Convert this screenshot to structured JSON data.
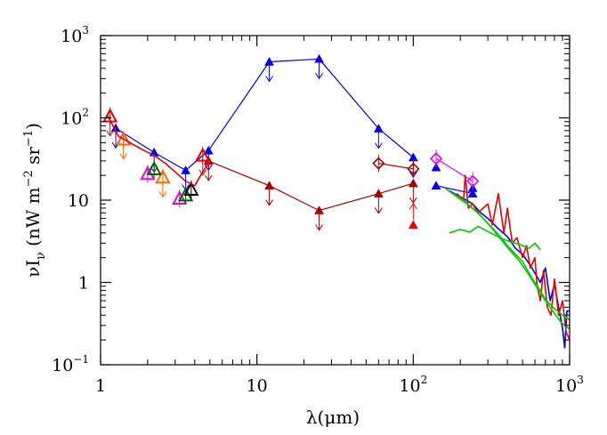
{
  "chart_data": {
    "type": "scatter",
    "x_scale": "log",
    "y_scale": "log",
    "xlim": [
      1,
      1000
    ],
    "ylim": [
      0.1,
      1000
    ],
    "x_ticks": [
      {
        "value": 1,
        "base": "1",
        "exp": ""
      },
      {
        "value": 10,
        "base": "10",
        "exp": ""
      },
      {
        "value": 100,
        "base": "10",
        "exp": "2"
      },
      {
        "value": 1000,
        "base": "10",
        "exp": "3"
      }
    ],
    "y_ticks": [
      {
        "value": 0.1,
        "base": "10",
        "exp": "−1"
      },
      {
        "value": 1,
        "base": "1",
        "exp": ""
      },
      {
        "value": 10,
        "base": "10",
        "exp": ""
      },
      {
        "value": 100,
        "base": "10",
        "exp": "2"
      },
      {
        "value": 1000,
        "base": "10",
        "exp": "3"
      }
    ],
    "xlabel": "λ(μm)",
    "ylabel": "νI_ν (nW m⁻² sr⁻¹)",
    "colors": {
      "blue": "#0000ee",
      "darkred": "#aa0000",
      "red": "#ee0000",
      "orange": "#ff6600",
      "magenta": "#ee00ee",
      "green": "#00cc00",
      "darkgreen": "#006600",
      "black": "#000000"
    },
    "series": [
      {
        "marker": "filled-triangle",
        "color": "blue",
        "connect": true,
        "upper_limit": true,
        "points": [
          [
            1.25,
            75
          ],
          [
            2.2,
            38
          ],
          [
            3.5,
            23
          ],
          [
            4.9,
            40
          ],
          [
            12,
            480
          ],
          [
            25,
            520
          ],
          [
            60,
            74
          ],
          [
            100,
            33
          ]
        ]
      },
      {
        "marker": "filled-triangle",
        "color": "darkred",
        "connect": true,
        "upper_limit": true,
        "points": [
          [
            4.9,
            30
          ],
          [
            12,
            15
          ],
          [
            25,
            7.5
          ],
          [
            60,
            12
          ],
          [
            100,
            16
          ]
        ]
      },
      {
        "marker": "filled-triangle",
        "color": "blue",
        "connect": true,
        "upper_limit": false,
        "points": [
          [
            140,
            15
          ],
          [
            240,
            12
          ]
        ]
      },
      {
        "marker": "filled-triangle",
        "color": "blue",
        "connect": false,
        "upper_limit": false,
        "points": [
          [
            140,
            25
          ],
          [
            240,
            14
          ]
        ]
      },
      {
        "marker": "filled-triangle",
        "color": "red",
        "connect": false,
        "upper_limit": false,
        "lower_limit": true,
        "points": [
          [
            100,
            5
          ]
        ]
      },
      {
        "marker": "open-triangle",
        "color": "red",
        "connect": false,
        "upper_limit": true,
        "points": [
          [
            1.15,
            105
          ],
          [
            4.5,
            35
          ]
        ]
      },
      {
        "marker": "open-triangle",
        "color": "orange",
        "connect": false,
        "upper_limit": true,
        "points": [
          [
            1.4,
            55
          ],
          [
            2.5,
            19
          ]
        ]
      },
      {
        "marker": "open-triangle",
        "color": "magenta",
        "connect": false,
        "upper_limit": false,
        "points": [
          [
            2.0,
            21
          ],
          [
            3.2,
            10.5
          ]
        ]
      },
      {
        "marker": "open-triangle",
        "color": "darkgreen",
        "connect": false,
        "upper_limit": false,
        "points": [
          [
            2.2,
            24
          ],
          [
            3.5,
            11.5
          ]
        ]
      },
      {
        "marker": "open-triangle",
        "color": "black",
        "connect": false,
        "upper_limit": false,
        "points": [
          [
            3.8,
            13.5
          ]
        ]
      },
      {
        "marker": "open-diamond",
        "color": "darkred",
        "connect": true,
        "upper_limit": false,
        "points": [
          [
            60,
            28
          ],
          [
            100,
            24
          ]
        ]
      },
      {
        "marker": "open-diamond",
        "color": "magenta",
        "connect": true,
        "upper_limit": false,
        "points": [
          [
            140,
            32
          ],
          [
            240,
            17
          ]
        ]
      },
      {
        "marker": "none",
        "color": "red",
        "connect": true,
        "upper_limit": false,
        "points": [
          [
            1.1,
            110
          ],
          [
            1.3,
            60
          ],
          [
            1.6,
            48
          ],
          [
            1.9,
            40
          ],
          [
            2.2,
            35
          ],
          [
            2.6,
            28
          ],
          [
            3.0,
            22
          ],
          [
            3.5,
            17
          ],
          [
            4.0,
            15
          ],
          [
            4.5,
            22
          ],
          [
            5.0,
            30
          ]
        ]
      },
      {
        "marker": "none",
        "color": "blue",
        "connect": true,
        "upper_limit": false,
        "points": [
          [
            170,
            13
          ],
          [
            200,
            11
          ],
          [
            240,
            9
          ],
          [
            270,
            7
          ],
          [
            300,
            6
          ],
          [
            350,
            4.5
          ],
          [
            400,
            3.6
          ],
          [
            450,
            2.6
          ],
          [
            500,
            2.2
          ],
          [
            550,
            1.7
          ],
          [
            600,
            1.3
          ],
          [
            650,
            1.0
          ],
          [
            700,
            1.5
          ],
          [
            750,
            0.6
          ],
          [
            800,
            0.95
          ],
          [
            850,
            0.5
          ],
          [
            900,
            0.28
          ],
          [
            930,
            0.16
          ],
          [
            960,
            0.45
          ],
          [
            1000,
            0.45
          ]
        ]
      },
      {
        "marker": "none",
        "color": "red",
        "connect": true,
        "upper_limit": false,
        "points": [
          [
            190,
            12
          ],
          [
            210,
            10
          ],
          [
            215,
            20
          ],
          [
            225,
            8
          ],
          [
            240,
            9
          ],
          [
            260,
            7
          ],
          [
            280,
            8
          ],
          [
            300,
            9
          ],
          [
            320,
            5
          ],
          [
            350,
            12
          ],
          [
            380,
            4
          ],
          [
            400,
            8
          ],
          [
            430,
            3
          ],
          [
            460,
            3.5
          ],
          [
            500,
            2
          ],
          [
            530,
            2.8
          ],
          [
            560,
            1.5
          ],
          [
            600,
            2.0
          ],
          [
            620,
            0.9
          ],
          [
            650,
            0.6
          ],
          [
            680,
            1.4
          ],
          [
            720,
            0.5
          ],
          [
            760,
            0.4
          ],
          [
            800,
            1.1
          ],
          [
            850,
            0.4
          ],
          [
            900,
            0.6
          ],
          [
            950,
            0.25
          ],
          [
            1000,
            0.2
          ]
        ]
      },
      {
        "marker": "none",
        "color": "green",
        "connect": true,
        "upper_limit": false,
        "points": [
          [
            170,
            4
          ],
          [
            200,
            4.4
          ],
          [
            230,
            4.1
          ],
          [
            260,
            4.8
          ],
          [
            290,
            4.3
          ],
          [
            320,
            3.9
          ],
          [
            360,
            3.5
          ],
          [
            400,
            3.2
          ],
          [
            450,
            3.0
          ],
          [
            500,
            2.8
          ],
          [
            550,
            2.6
          ],
          [
            600,
            3.0
          ],
          [
            650,
            2.5
          ]
        ]
      },
      {
        "marker": "none",
        "color": "green",
        "connect": true,
        "upper_limit": false,
        "points": [
          [
            160,
            14
          ],
          [
            190,
            11
          ],
          [
            220,
            9
          ],
          [
            250,
            7.5
          ],
          [
            280,
            6
          ],
          [
            320,
            4.6
          ],
          [
            360,
            3.6
          ],
          [
            400,
            2.8
          ],
          [
            450,
            2.2
          ],
          [
            500,
            1.8
          ],
          [
            550,
            1.3
          ],
          [
            600,
            1.0
          ],
          [
            650,
            0.8
          ],
          [
            700,
            0.62
          ],
          [
            800,
            0.48
          ],
          [
            900,
            0.4
          ],
          [
            1000,
            0.35
          ]
        ]
      },
      {
        "marker": "none",
        "color": "green",
        "connect": true,
        "upper_limit": false,
        "points": [
          [
            180,
            12
          ],
          [
            210,
            10
          ],
          [
            240,
            8
          ],
          [
            280,
            6
          ],
          [
            320,
            4.5
          ],
          [
            360,
            3.4
          ],
          [
            420,
            2.4
          ],
          [
            480,
            1.8
          ],
          [
            540,
            1.3
          ],
          [
            600,
            0.95
          ],
          [
            680,
            0.65
          ],
          [
            780,
            0.45
          ],
          [
            880,
            0.33
          ],
          [
            1000,
            0.27
          ]
        ]
      }
    ]
  }
}
